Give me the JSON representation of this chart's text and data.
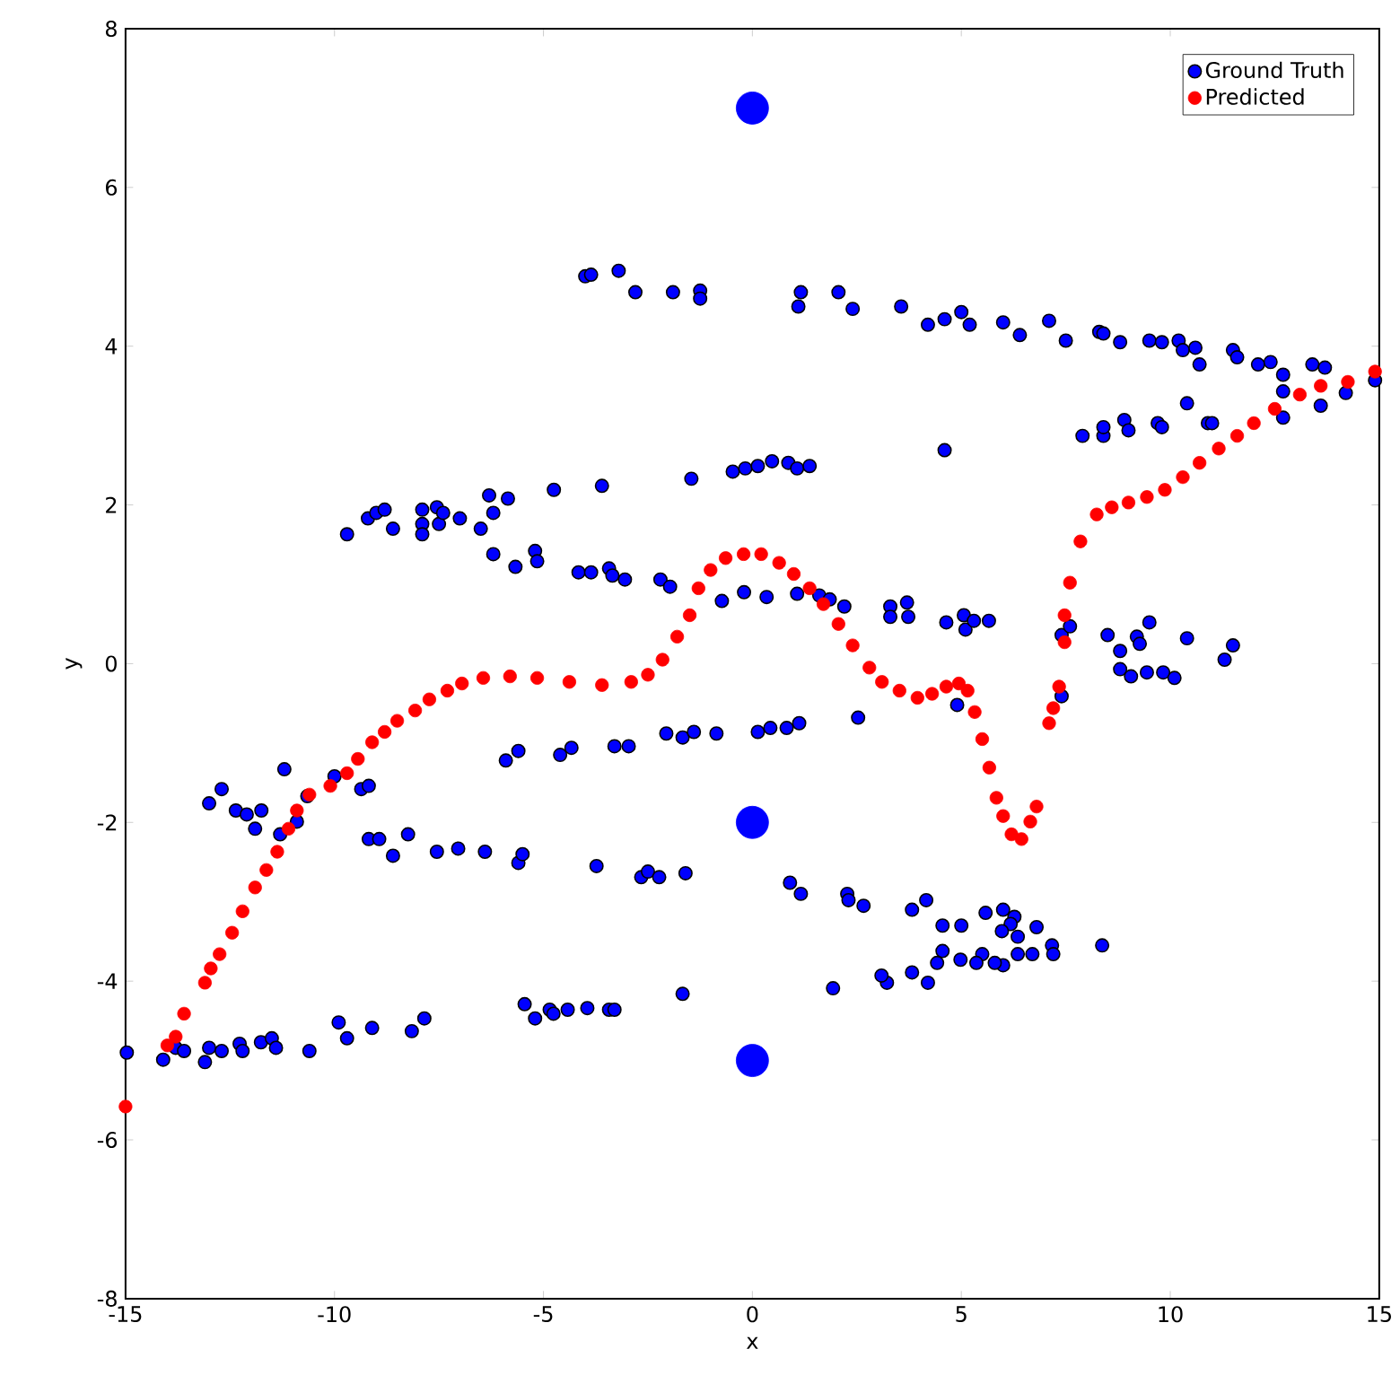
{
  "chart_data": {
    "type": "scatter",
    "xlabel": "x",
    "ylabel": "y",
    "xlim": [
      -15,
      15
    ],
    "ylim": [
      -8,
      8
    ],
    "xticks": [
      -15,
      -10,
      -5,
      0,
      5,
      10,
      15
    ],
    "yticks": [
      -8,
      -6,
      -4,
      -2,
      0,
      2,
      4,
      6,
      8
    ],
    "grid": false,
    "legend": "top right",
    "series": [
      {
        "name": "Ground Truth",
        "color": "#0000ff",
        "x": [
          -4.0,
          -3.86,
          -3.2,
          -2.8,
          -1.9,
          -1.25,
          -1.25,
          1.16,
          1.1,
          2.06,
          2.4,
          3.56,
          4.2,
          4.6,
          5.0,
          5.2,
          6.0,
          6.4,
          7.1,
          7.5,
          8.3,
          8.4,
          8.8,
          9.5,
          9.8,
          10.2,
          10.3,
          10.6,
          10.7,
          11.5,
          11.6,
          12.1,
          12.4,
          12.7,
          12.7,
          13.4,
          13.7,
          14.2,
          14.9,
          7.9,
          8.4,
          8.4,
          8.9,
          9.0,
          9.7,
          9.8,
          10.4,
          10.9,
          11.0,
          12.7,
          13.6,
          4.6,
          -9.7,
          -9.2,
          -9.0,
          -8.8,
          -8.6,
          -7.9,
          -7.9,
          -7.9,
          -7.55,
          -7.5,
          -7.4,
          -7.0,
          -6.5,
          -6.3,
          -6.2,
          -5.85,
          -4.75,
          -3.6,
          -1.46,
          -0.47,
          -0.17,
          0.13,
          0.47,
          0.86,
          1.07,
          1.37,
          -6.2,
          -5.67,
          -5.2,
          -5.15,
          -4.16,
          -3.86,
          -3.43,
          -3.35,
          -3.05,
          -2.2,
          -1.97,
          -0.73,
          -0.2,
          0.34,
          1.07,
          1.6,
          1.85,
          2.2,
          3.3,
          3.7,
          3.73,
          3.3,
          4.64,
          5.06,
          5.1,
          5.3,
          5.66,
          7.4,
          7.6,
          8.5,
          8.8,
          9.2,
          9.27,
          9.5,
          8.8,
          9.06,
          9.44,
          9.83,
          10.1,
          10.4,
          11.3,
          11.5,
          7.4,
          -5.9,
          -5.6,
          -4.6,
          -4.33,
          -3.3,
          -2.96,
          -2.06,
          -1.67,
          -1.4,
          -0.86,
          0.13,
          0.43,
          0.82,
          1.12,
          2.53,
          4.9,
          -13.0,
          -12.7,
          -12.36,
          -12.1,
          -11.9,
          -11.75,
          -11.2,
          -11.3,
          -10.9,
          -10.65,
          -10.0,
          -9.36,
          -9.18,
          -9.18,
          -8.93,
          -8.6,
          -8.24,
          -7.55,
          -7.04,
          -6.4,
          -5.6,
          -5.5,
          -3.73,
          -2.66,
          -2.5,
          -2.23,
          -1.6,
          0.9,
          1.16,
          2.27,
          2.3,
          2.66,
          3.82,
          4.16,
          4.55,
          5.0,
          5.58,
          6.0,
          6.27,
          6.18,
          6.8,
          6.35,
          5.97,
          7.17,
          7.2,
          8.37,
          6.7,
          6.35,
          6.0,
          5.8,
          5.5,
          5.36,
          4.98,
          4.55,
          4.42,
          4.2,
          3.82,
          3.22,
          3.09,
          1.93,
          -14.97,
          -14.1,
          -13.8,
          -13.6,
          -13.1,
          -13.0,
          -12.7,
          -12.27,
          -12.2,
          -11.76,
          -11.5,
          -11.4,
          -10.6,
          -9.9,
          -9.7,
          -9.1,
          -8.15,
          -7.85,
          -5.45,
          -5.2,
          -4.85,
          -4.76,
          -4.42,
          -3.95,
          -3.43,
          -3.3,
          -1.67
        ],
        "values": [
          4.88,
          4.9,
          4.95,
          4.68,
          4.68,
          4.7,
          4.6,
          4.68,
          4.5,
          4.68,
          4.47,
          4.5,
          4.27,
          4.34,
          4.43,
          4.27,
          4.3,
          4.14,
          4.32,
          4.07,
          4.18,
          4.16,
          4.05,
          4.07,
          4.05,
          4.07,
          3.95,
          3.98,
          3.77,
          3.95,
          3.86,
          3.77,
          3.8,
          3.64,
          3.43,
          3.77,
          3.73,
          3.41,
          3.57,
          2.87,
          2.87,
          2.98,
          3.07,
          2.94,
          3.03,
          2.98,
          3.28,
          3.03,
          3.03,
          3.1,
          3.25,
          2.69,
          1.63,
          1.83,
          1.9,
          1.94,
          1.7,
          1.94,
          1.76,
          1.63,
          1.97,
          1.76,
          1.9,
          1.83,
          1.7,
          2.12,
          1.9,
          2.08,
          2.19,
          2.24,
          2.33,
          2.42,
          2.46,
          2.49,
          2.55,
          2.53,
          2.46,
          2.49,
          1.38,
          1.22,
          1.42,
          1.29,
          1.15,
          1.15,
          1.2,
          1.11,
          1.06,
          1.06,
          0.97,
          0.79,
          0.9,
          0.84,
          0.88,
          0.86,
          0.81,
          0.72,
          0.72,
          0.77,
          0.59,
          0.59,
          0.52,
          0.61,
          0.43,
          0.54,
          0.54,
          0.36,
          0.47,
          0.36,
          0.16,
          0.34,
          0.25,
          0.52,
          -0.07,
          -0.16,
          -0.11,
          -0.11,
          -0.18,
          0.32,
          0.05,
          0.23,
          -0.41,
          -1.22,
          -1.1,
          -1.15,
          -1.06,
          -1.04,
          -1.04,
          -0.88,
          -0.93,
          -0.86,
          -0.88,
          -0.86,
          -0.81,
          -0.81,
          -0.75,
          -0.68,
          -0.52,
          -1.76,
          -1.58,
          -1.85,
          -1.9,
          -2.08,
          -1.85,
          -1.33,
          -2.15,
          -1.99,
          -1.67,
          -1.42,
          -1.58,
          -1.54,
          -2.21,
          -2.21,
          -2.42,
          -2.15,
          -2.37,
          -2.33,
          -2.37,
          -2.51,
          -2.4,
          -2.55,
          -2.69,
          -2.62,
          -2.69,
          -2.64,
          -2.76,
          -2.9,
          -2.9,
          -2.98,
          -3.05,
          -3.1,
          -2.98,
          -3.3,
          -3.3,
          -3.14,
          -3.1,
          -3.19,
          -3.28,
          -3.32,
          -3.44,
          -3.37,
          -3.55,
          -3.66,
          -3.55,
          -3.66,
          -3.66,
          -3.8,
          -3.77,
          -3.66,
          -3.77,
          -3.73,
          -3.62,
          -3.77,
          -4.02,
          -3.89,
          -4.02,
          -3.93,
          -4.09,
          -4.9,
          -4.99,
          -4.84,
          -4.88,
          -5.02,
          -4.84,
          -4.88,
          -4.79,
          -4.88,
          -4.77,
          -4.72,
          -4.84,
          -4.88,
          -4.52,
          -4.72,
          -4.59,
          -4.63,
          -4.47,
          -4.29,
          -4.47,
          -4.36,
          -4.41,
          -4.36,
          -4.34,
          -4.36,
          -4.36,
          -4.16
        ]
      },
      {
        "color": "#0000ff",
        "x": [
          0,
          0,
          0
        ],
        "values": [
          7,
          -2,
          -5
        ]
      },
      {
        "name": "Predicted",
        "color": "#ff0000",
        "x": [
          -15,
          -14.0,
          -13.8,
          -13.6,
          -13.1,
          -12.96,
          -12.75,
          -12.45,
          -12.2,
          -11.9,
          -11.63,
          -11.37,
          -11.1,
          -10.9,
          -10.6,
          -10.1,
          -9.7,
          -9.44,
          -9.1,
          -8.8,
          -8.5,
          -8.07,
          -7.73,
          -7.3,
          -6.95,
          -6.44,
          -5.8,
          -5.15,
          -4.38,
          -3.6,
          -2.9,
          -2.5,
          -2.15,
          -1.8,
          -1.5,
          -1.29,
          -1.0,
          -0.64,
          -0.21,
          0.21,
          0.64,
          0.99,
          1.37,
          1.7,
          2.06,
          2.4,
          2.8,
          3.1,
          3.52,
          3.95,
          4.3,
          4.64,
          4.94,
          5.15,
          5.32,
          5.5,
          5.67,
          5.84,
          6.0,
          6.2,
          6.44,
          6.65,
          6.8,
          7.1,
          7.2,
          7.34,
          7.47,
          7.47,
          7.6,
          7.85,
          8.24,
          8.6,
          9.0,
          9.44,
          9.87,
          10.3,
          10.7,
          11.16,
          11.6,
          12.0,
          12.5,
          13.1,
          13.6,
          14.25,
          14.9
        ],
        "values": [
          -5.58,
          -4.81,
          -4.7,
          -4.41,
          -4.02,
          -3.84,
          -3.66,
          -3.39,
          -3.12,
          -2.82,
          -2.6,
          -2.37,
          -2.08,
          -1.85,
          -1.65,
          -1.54,
          -1.38,
          -1.2,
          -0.99,
          -0.86,
          -0.72,
          -0.59,
          -0.45,
          -0.34,
          -0.25,
          -0.18,
          -0.16,
          -0.18,
          -0.23,
          -0.27,
          -0.23,
          -0.14,
          0.05,
          0.34,
          0.61,
          0.95,
          1.18,
          1.33,
          1.38,
          1.38,
          1.27,
          1.13,
          0.95,
          0.75,
          0.5,
          0.23,
          -0.05,
          -0.23,
          -0.34,
          -0.43,
          -0.38,
          -0.29,
          -0.25,
          -0.34,
          -0.61,
          -0.95,
          -1.31,
          -1.69,
          -1.92,
          -2.15,
          -2.21,
          -1.99,
          -1.8,
          -0.75,
          -0.56,
          -0.29,
          0.27,
          0.61,
          1.02,
          1.54,
          1.88,
          1.97,
          2.03,
          2.1,
          2.19,
          2.35,
          2.53,
          2.71,
          2.87,
          3.03,
          3.21,
          3.39,
          3.5,
          3.55,
          3.68
        ]
      }
    ]
  }
}
